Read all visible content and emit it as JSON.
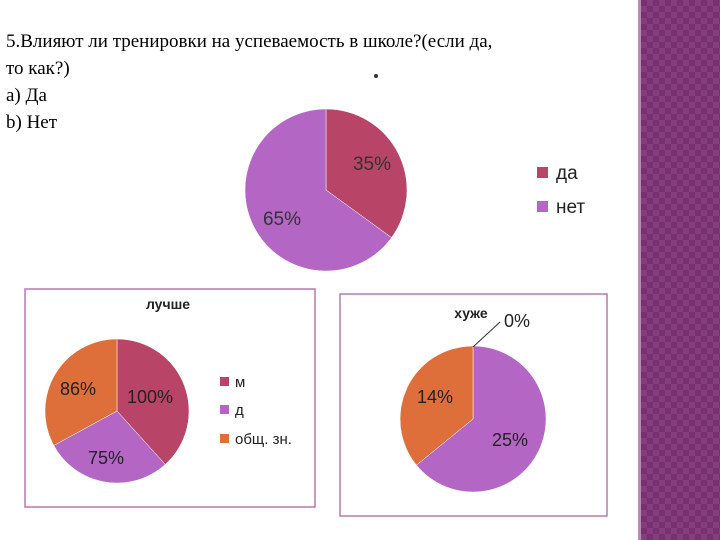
{
  "question": {
    "line1": "5.Влияют ли тренировки на успеваемость в школе?(если да,",
    "line2": "то как?)",
    "option_a": "а) Да",
    "option_b": "b) Нет"
  },
  "colors": {
    "crimson": "#b84468",
    "purple": "#b366c3",
    "orange": "#de6f3b",
    "frame": "#b678b0"
  },
  "chart_data": [
    {
      "type": "pie",
      "title": "",
      "slices": [
        {
          "label": "да",
          "value": 35,
          "display": "35%",
          "color": "#b84468"
        },
        {
          "label": "нет",
          "value": 65,
          "display": "65%",
          "color": "#b366c3"
        }
      ],
      "legend": [
        "да",
        "нет"
      ],
      "legend_position": "right"
    },
    {
      "type": "pie",
      "title": "лучше",
      "slices": [
        {
          "label": "м",
          "value": 100,
          "display": "100%",
          "color": "#b84468"
        },
        {
          "label": "д",
          "value": 75,
          "display": "75%",
          "color": "#b366c3"
        },
        {
          "label": "общ. зн.",
          "value": 86,
          "display": "86%",
          "color": "#de6f3b"
        }
      ],
      "legend": [
        "м",
        "д",
        "общ. зн."
      ],
      "legend_position": "right"
    },
    {
      "type": "pie",
      "title": "хуже",
      "slices": [
        {
          "label": "",
          "value": 0,
          "display": "0%",
          "color": "#b84468"
        },
        {
          "label": "",
          "value": 25,
          "display": "25%",
          "color": "#b366c3"
        },
        {
          "label": "",
          "value": 14,
          "display": "14%",
          "color": "#de6f3b"
        }
      ],
      "legend": []
    }
  ]
}
